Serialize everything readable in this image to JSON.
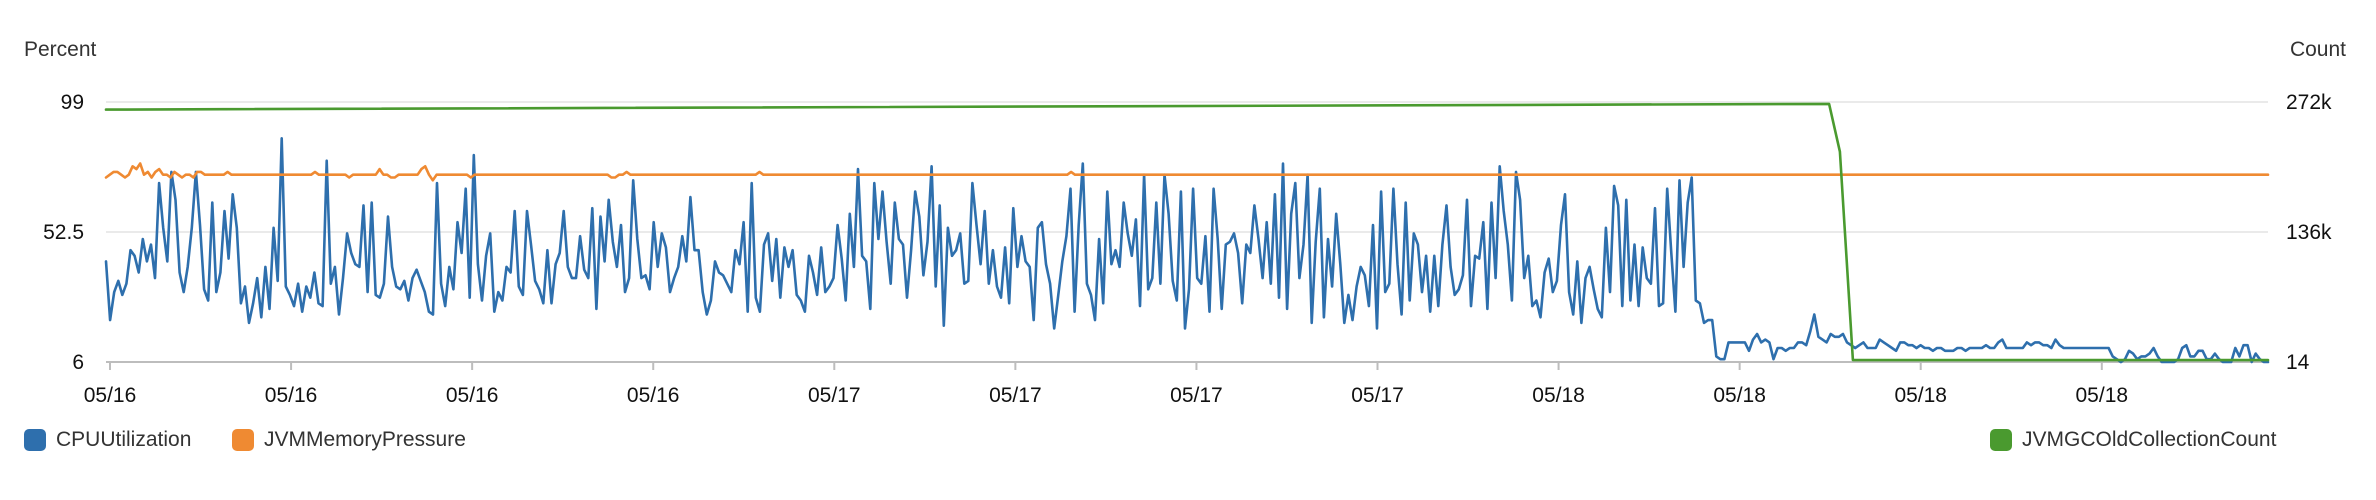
{
  "chart_data": {
    "type": "line",
    "left_axis": {
      "label": "Percent",
      "ticks": [
        "99",
        "52.5",
        "6"
      ],
      "range": [
        6,
        99
      ]
    },
    "right_axis": {
      "label": "Count",
      "ticks": [
        "272k",
        "136k",
        "14"
      ],
      "range": [
        14,
        272000
      ]
    },
    "x_tick_labels": [
      "05/16",
      "05/16",
      "05/16",
      "05/16",
      "05/17",
      "05/17",
      "05/17",
      "05/17",
      "05/18",
      "05/18",
      "05/18",
      "05/18"
    ],
    "grid": "horizontal",
    "legend_placement": "bottom",
    "series": [
      {
        "name": "CPUUtilization",
        "axis": "left",
        "color": "#2e6fad",
        "values": [
          42,
          21,
          31,
          35,
          30,
          34,
          46,
          44,
          38,
          50,
          42,
          48,
          36,
          70,
          54,
          42,
          74,
          64,
          38,
          31,
          40,
          54,
          74,
          55,
          32,
          28,
          63,
          31,
          38,
          60,
          43,
          66,
          54,
          27,
          33,
          20,
          27,
          36,
          22,
          40,
          25,
          54,
          35,
          86,
          33,
          30,
          26,
          34,
          24,
          33,
          29,
          38,
          27,
          26,
          78,
          34,
          40,
          23,
          36,
          52,
          45,
          41,
          40,
          62,
          31,
          63,
          30,
          29,
          34,
          58,
          40,
          33,
          32,
          35,
          28,
          36,
          39,
          35,
          31,
          24,
          23,
          70,
          34,
          26,
          40,
          32,
          56,
          45,
          68,
          29,
          80,
          41,
          28,
          44,
          52,
          24,
          31,
          28,
          40,
          38,
          60,
          33,
          30,
          60,
          48,
          35,
          32,
          27,
          46,
          27,
          41,
          45,
          60,
          40,
          36,
          36,
          51,
          39,
          36,
          61,
          25,
          58,
          42,
          64,
          49,
          40,
          55,
          31,
          36,
          71,
          50,
          36,
          37,
          32,
          56,
          40,
          52,
          47,
          31,
          36,
          40,
          51,
          42,
          65,
          46,
          46,
          31,
          23,
          28,
          42,
          38,
          37,
          34,
          31,
          46,
          41,
          56,
          24,
          70,
          29,
          24,
          48,
          52,
          35,
          50,
          29,
          47,
          40,
          46,
          30,
          28,
          24,
          44,
          38,
          30,
          47,
          31,
          33,
          36,
          55,
          43,
          28,
          59,
          40,
          75,
          44,
          42,
          25,
          70,
          50,
          67,
          49,
          34,
          63,
          50,
          48,
          29,
          46,
          67,
          58,
          37,
          49,
          76,
          33,
          62,
          19,
          54,
          44,
          46,
          52,
          34,
          35,
          70,
          55,
          41,
          60,
          34,
          46,
          33,
          29,
          47,
          27,
          61,
          40,
          51,
          42,
          40,
          21,
          54,
          56,
          41,
          34,
          18,
          30,
          42,
          51,
          68,
          24,
          55,
          77,
          34,
          30,
          21,
          50,
          27,
          67,
          41,
          46,
          40,
          63,
          52,
          44,
          57,
          26,
          73,
          32,
          36,
          63,
          34,
          73,
          59,
          35,
          28,
          67,
          18,
          32,
          68,
          36,
          34,
          51,
          24,
          68,
          50,
          25,
          48,
          49,
          52,
          45,
          27,
          48,
          45,
          62,
          50,
          36,
          56,
          34,
          66,
          29,
          77,
          25,
          59,
          70,
          36,
          48,
          73,
          20,
          49,
          68,
          22,
          50,
          33,
          59,
          41,
          20,
          30,
          21,
          33,
          40,
          37,
          26,
          55,
          18,
          67,
          31,
          34,
          68,
          41,
          23,
          63,
          28,
          52,
          48,
          31,
          44,
          24,
          44,
          26,
          48,
          62,
          40,
          30,
          32,
          37,
          64,
          26,
          44,
          43,
          56,
          25,
          63,
          36,
          76,
          60,
          48,
          28,
          74,
          64,
          36,
          44,
          26,
          28,
          22,
          38,
          43,
          31,
          35,
          55,
          66,
          31,
          23,
          42,
          20,
          36,
          40,
          32,
          25,
          22,
          54,
          31,
          69,
          62,
          26,
          64,
          28,
          48,
          26,
          47,
          36,
          34,
          61,
          26,
          27,
          68,
          45,
          24,
          71,
          40,
          63,
          72,
          28,
          27,
          20,
          21,
          21,
          8,
          7,
          7,
          13,
          13,
          13,
          13,
          13,
          10,
          14,
          16,
          13,
          14,
          13,
          7,
          11,
          11,
          10,
          11,
          11,
          13,
          13,
          12,
          17,
          23,
          15,
          14,
          13,
          16,
          15,
          15,
          16,
          13,
          12,
          11,
          12,
          13,
          11,
          11,
          11,
          14,
          13,
          12,
          11,
          10,
          13,
          13,
          12,
          12,
          11,
          12,
          11,
          11,
          10,
          11,
          11,
          10,
          10,
          10,
          11,
          11,
          10,
          11,
          11,
          11,
          11,
          12,
          11,
          11,
          13,
          14,
          11,
          11,
          11,
          11,
          11,
          13,
          12,
          13,
          13,
          12,
          12,
          11,
          14,
          12,
          11,
          11,
          11,
          11,
          11,
          11,
          11,
          11,
          11,
          11,
          11,
          11,
          8,
          7,
          6,
          7,
          10,
          9,
          7,
          8,
          8,
          9,
          11,
          8,
          6,
          6,
          6,
          6,
          7,
          11,
          12,
          8,
          8,
          10,
          10,
          7,
          7,
          9,
          7,
          6,
          6,
          6,
          11,
          8,
          12,
          12,
          6,
          9,
          7,
          6,
          6
        ],
        "values_note": "sampled approx every ~4.3 px along x; earlier region varied"
      },
      {
        "name": "JVMMemoryPressure",
        "axis": "left",
        "color": "#ef8a32",
        "values": [
          72,
          73,
          74,
          74,
          73,
          72,
          73,
          76,
          75,
          77,
          73,
          74,
          72,
          74,
          75,
          73,
          73,
          72,
          74,
          73,
          72,
          73,
          73,
          72,
          74,
          74,
          73,
          73,
          73,
          73,
          73,
          73,
          74,
          73,
          73,
          73,
          73,
          73,
          73,
          73,
          73,
          73,
          73,
          73,
          73,
          73,
          73,
          73,
          73,
          73,
          73,
          73,
          73,
          73,
          73,
          74,
          73,
          73,
          73,
          73,
          73,
          73,
          73,
          73,
          72,
          73,
          73,
          73,
          73,
          73,
          73,
          73,
          75,
          73,
          73,
          72,
          72,
          73,
          73,
          73,
          73,
          73,
          73,
          75,
          76,
          73,
          71,
          73,
          73,
          73,
          73,
          73,
          73,
          73,
          73,
          73,
          72,
          73,
          73,
          73,
          73,
          73,
          73,
          73,
          73,
          73,
          73,
          73,
          73,
          73,
          73,
          73,
          73,
          73,
          73,
          73,
          73,
          73,
          73,
          73,
          73,
          73,
          73,
          73,
          73,
          73,
          73,
          73,
          73,
          73,
          73,
          73,
          73,
          72,
          72,
          73,
          73,
          74,
          73,
          73,
          73,
          73,
          73,
          73,
          73,
          73,
          73,
          73,
          73,
          73,
          73,
          73,
          73,
          73,
          73,
          73,
          73,
          73,
          73,
          73,
          73,
          73,
          73,
          73,
          73,
          73,
          73,
          73,
          73,
          73,
          73,
          73,
          74,
          73,
          73,
          73,
          73,
          73,
          73,
          73,
          73,
          73,
          73,
          73,
          73,
          73,
          73,
          73,
          73,
          73,
          73,
          73,
          73,
          73,
          73,
          73,
          73,
          73,
          73,
          73,
          73,
          73,
          73,
          73,
          73,
          73,
          73,
          73,
          73,
          73,
          73,
          73,
          73,
          73,
          73,
          73,
          73,
          73,
          73,
          73,
          73,
          73,
          73,
          73,
          73,
          73,
          73,
          73,
          73,
          73,
          73,
          73,
          73,
          73,
          73,
          73,
          73,
          73,
          73,
          73,
          73,
          73,
          73,
          73,
          73,
          73,
          73,
          73,
          73,
          73,
          73,
          73,
          73,
          73,
          74,
          73,
          73,
          73,
          73,
          73,
          73,
          73,
          73,
          73,
          73,
          73,
          73,
          73,
          73,
          73,
          73,
          73,
          73,
          73,
          73,
          73,
          73,
          73,
          73,
          73,
          73,
          73,
          73,
          73,
          73,
          73,
          73,
          73,
          73,
          73,
          73,
          73,
          73,
          73,
          73,
          73,
          73,
          73,
          73,
          73,
          73,
          73,
          73,
          73,
          73,
          73,
          73,
          73,
          73,
          73,
          73,
          73,
          73,
          73,
          73,
          73,
          73,
          73,
          73,
          73,
          73,
          73,
          73,
          73,
          73,
          73,
          73,
          73,
          73,
          73,
          73,
          73,
          73,
          73,
          73,
          73,
          73,
          73,
          73,
          73,
          73,
          73,
          73,
          73,
          73,
          73,
          73,
          73,
          73,
          73,
          73,
          73,
          73,
          73,
          73,
          73,
          73,
          73,
          73,
          73,
          73,
          73,
          73,
          73,
          73,
          73,
          73,
          73,
          73,
          73,
          73,
          73,
          73,
          73,
          73,
          73,
          73,
          73,
          73,
          73,
          73,
          73,
          73,
          73,
          73,
          73,
          73,
          73,
          73,
          73,
          73,
          73,
          73,
          73,
          73,
          73,
          73,
          73,
          73,
          73,
          73,
          73,
          73,
          73,
          73,
          73,
          73,
          73,
          73,
          73,
          73,
          73,
          73,
          73,
          73,
          73,
          73,
          73,
          73,
          73,
          73,
          73,
          73,
          73,
          73,
          73,
          73,
          73,
          73,
          73,
          73,
          73,
          73,
          73,
          73,
          73,
          73,
          73,
          73,
          73,
          73,
          73,
          73,
          73,
          73,
          73,
          73,
          73,
          73,
          73,
          73,
          73,
          73,
          73,
          73,
          73,
          73,
          73,
          73,
          73,
          73,
          73,
          73,
          73,
          73,
          73,
          73,
          73,
          73,
          73,
          73,
          73,
          73,
          73,
          73,
          73,
          73,
          73,
          73,
          73,
          73,
          73,
          73,
          73,
          73,
          73,
          73,
          73,
          73,
          73,
          73,
          73,
          73,
          73,
          73,
          73,
          73,
          73,
          73,
          73,
          73,
          73,
          73,
          73,
          73,
          73,
          73,
          73,
          73,
          73,
          73,
          73,
          73,
          73,
          73,
          73,
          73,
          73,
          73,
          73,
          73,
          73,
          73,
          73,
          73,
          73,
          73,
          73,
          73,
          73,
          73,
          73,
          73,
          73,
          73,
          73,
          73,
          73,
          73,
          73,
          73,
          73,
          73,
          73,
          73,
          73,
          73,
          73,
          73,
          73,
          73,
          73,
          73,
          73,
          73,
          73,
          73,
          73,
          73,
          73,
          73,
          73,
          73,
          73,
          73,
          73,
          73,
          73,
          73,
          73
        ]
      },
      {
        "name": "JVMGCOldCollectionCount",
        "axis": "right",
        "color": "#4a9a2f",
        "points": [
          {
            "x": 0.0,
            "y": 264000
          },
          {
            "x": 0.797,
            "y": 270000
          },
          {
            "x": 0.797,
            "y": 270000
          },
          {
            "x": 0.797,
            "y": 270000
          },
          {
            "x": 0.802,
            "y": 220000
          },
          {
            "x": 0.808,
            "y": 2000
          },
          {
            "x": 1.0,
            "y": 2000
          }
        ]
      }
    ]
  },
  "colors": {
    "grid": "#e3e3e3",
    "axis": "#bdbdbd",
    "text": "#333333"
  }
}
